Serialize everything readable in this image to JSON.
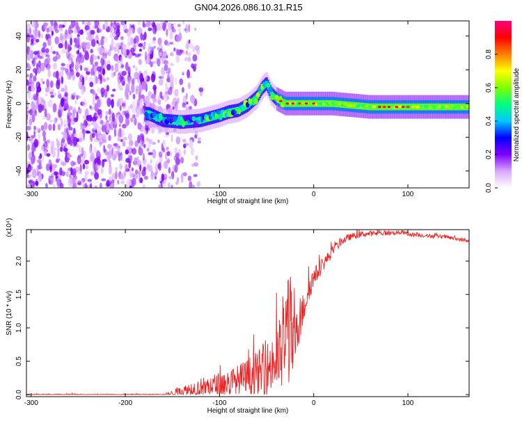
{
  "title": "GN04.2026.086.10.31.R15",
  "chart_data": [
    {
      "type": "heatmap",
      "xlabel": "Height of straight line (km)",
      "ylabel": "Frequency (Hz)",
      "xlim": [
        -305,
        165
      ],
      "ylim": [
        -50,
        49
      ],
      "xticks": [
        -300,
        -200,
        -100,
        0,
        100
      ],
      "yticks": [
        -40,
        -20,
        0,
        20,
        40
      ],
      "grid": false,
      "colorbar": {
        "label": "Normalized spectral amplitude",
        "range": [
          0,
          1
        ],
        "ticks": [
          "0.0",
          "0.2",
          "0.4",
          "0.6",
          "0.8"
        ],
        "colors": [
          "#ffffff",
          "#d9a8ff",
          "#8000ff",
          "#0000ff",
          "#00c8ff",
          "#00ff80",
          "#80ff00",
          "#ffff00",
          "#ff8000",
          "#ff0000",
          "#ff0080"
        ]
      },
      "ridge": {
        "x": [
          -175,
          -160,
          -140,
          -120,
          -100,
          -90,
          -80,
          -70,
          -60,
          -55,
          -50,
          -45,
          -40,
          -30,
          -20,
          -10,
          0,
          20,
          40,
          60,
          80,
          100,
          120,
          140,
          165
        ],
        "y": [
          -6,
          -10,
          -11,
          -10,
          -7,
          -5,
          -4,
          -1,
          4,
          9,
          12,
          6,
          3,
          0,
          0,
          0,
          0,
          0,
          -1,
          -2,
          -2,
          -2,
          -2,
          -2,
          -2
        ],
        "peak_amplitude": 1.0
      },
      "noise_region": {
        "x_from": -305,
        "x_to": -118,
        "amplitude": 0.15
      }
    },
    {
      "type": "line",
      "xlabel": "Height of straight line (km)",
      "ylabel": "SNR (10 * v/v)",
      "y_multiplier": "(x10⁴)",
      "xlim": [
        -305,
        165
      ],
      "ylim": [
        -0.03,
        2.47
      ],
      "xticks": [
        -300,
        -200,
        -100,
        0,
        100
      ],
      "yticks": [
        "0.0",
        "0.5",
        "1.0",
        "1.5",
        "2.0"
      ],
      "grid": false,
      "series": [
        {
          "color": "#ee2222",
          "x": [
            -305,
            -250,
            -200,
            -160,
            -150,
            -140,
            -130,
            -120,
            -110,
            -100,
            -90,
            -80,
            -70,
            -60,
            -50,
            -45,
            -40,
            -35,
            -30,
            -27,
            -25,
            -22,
            -20,
            -18,
            -15,
            -10,
            -5,
            0,
            10,
            20,
            30,
            40,
            50,
            60,
            80,
            95,
            100,
            120,
            140,
            160,
            165
          ],
          "y": [
            0.0,
            0.0,
            0.0,
            0.0,
            0.02,
            0.05,
            0.08,
            0.1,
            0.12,
            0.14,
            0.17,
            0.2,
            0.25,
            0.3,
            0.38,
            0.45,
            0.5,
            0.6,
            0.75,
            1.2,
            1.0,
            0.7,
            0.8,
            0.9,
            1.05,
            1.35,
            1.6,
            1.75,
            1.95,
            2.15,
            2.3,
            2.37,
            2.4,
            2.41,
            2.42,
            2.43,
            2.4,
            2.38,
            2.36,
            2.31,
            2.29
          ]
        }
      ],
      "noise_envelope": {
        "x": [
          -305,
          -200,
          -160,
          -150,
          -140,
          -130,
          -120,
          -110,
          -100,
          -90,
          -80,
          -70,
          -60,
          -50,
          -45,
          -40,
          -35,
          -30,
          -27,
          -25,
          -22,
          -20,
          -18,
          -15,
          -10,
          -5,
          0,
          10,
          20,
          30,
          40,
          60,
          100,
          165
        ],
        "y": [
          0.01,
          0.01,
          0.01,
          0.04,
          0.08,
          0.12,
          0.15,
          0.18,
          0.2,
          0.22,
          0.25,
          0.3,
          0.35,
          0.4,
          0.45,
          0.5,
          0.6,
          0.8,
          1.1,
          0.9,
          0.5,
          0.4,
          0.35,
          0.3,
          0.25,
          0.2,
          0.15,
          0.1,
          0.08,
          0.06,
          0.05,
          0.04,
          0.03,
          0.03
        ]
      }
    }
  ]
}
